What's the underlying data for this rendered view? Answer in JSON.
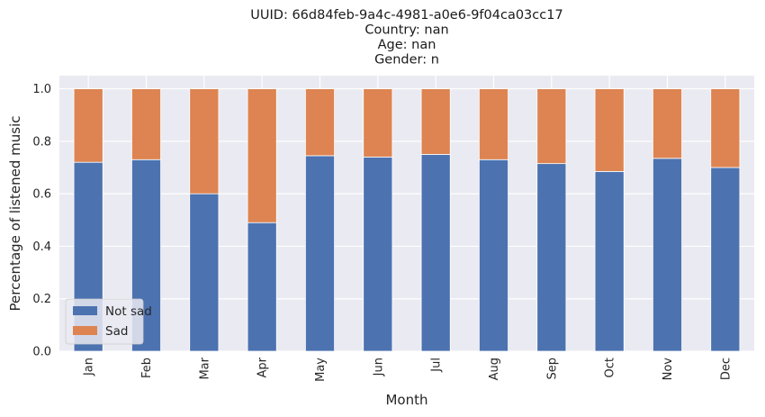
{
  "chart_data": {
    "type": "bar",
    "stacked": true,
    "title": [
      "UUID: 66d84feb-9a4c-4981-a0e6-9f04ca03cc17",
      "Country: nan",
      "Age: nan",
      "Gender: n"
    ],
    "xlabel": "Month",
    "ylabel": "Percentage of listened music",
    "ylim": [
      0,
      1.05
    ],
    "yticks": [
      "0.0",
      "0.2",
      "0.4",
      "0.6",
      "0.8",
      "1.0"
    ],
    "categories": [
      "Jan",
      "Feb",
      "Mar",
      "Apr",
      "May",
      "Jun",
      "Jul",
      "Aug",
      "Sep",
      "Oct",
      "Nov",
      "Dec"
    ],
    "series": [
      {
        "name": "Not sad",
        "color": "#4c72b0",
        "values": [
          0.72,
          0.73,
          0.6,
          0.49,
          0.745,
          0.74,
          0.75,
          0.73,
          0.715,
          0.685,
          0.735,
          0.7
        ]
      },
      {
        "name": "Sad",
        "color": "#dd8452",
        "values": [
          0.28,
          0.27,
          0.4,
          0.51,
          0.255,
          0.26,
          0.25,
          0.27,
          0.285,
          0.315,
          0.265,
          0.3
        ]
      }
    ],
    "grid": true,
    "legend_position": "lower-left",
    "background_color": "#eaeaf2"
  }
}
